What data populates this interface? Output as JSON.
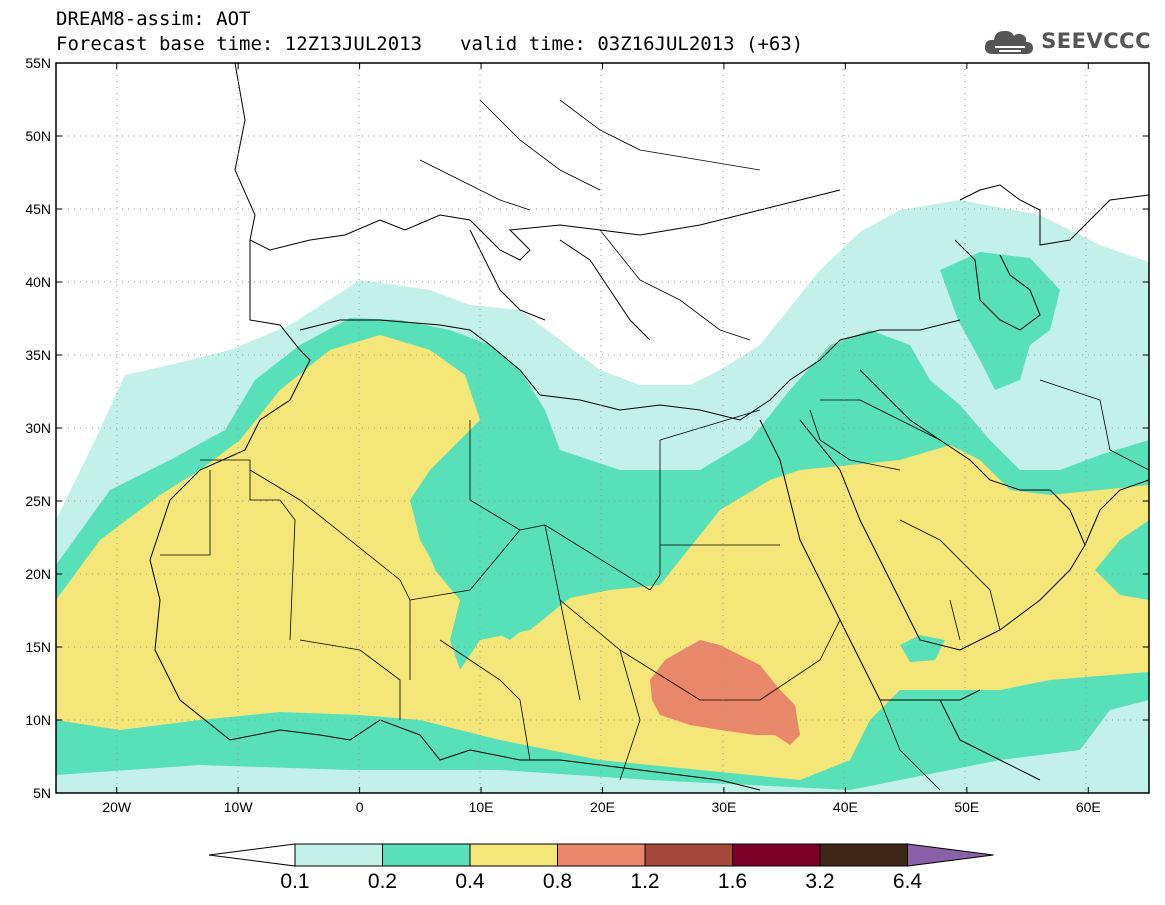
{
  "header": {
    "title": "DREAM8-assim: AOT",
    "base_time": "Forecast base time: 12Z13JUL2013",
    "valid_time": "valid time: 03Z16JUL2013 (+63)"
  },
  "logo": {
    "text": "SEEVCCC",
    "icon": "cloud-icon",
    "color": "#555555"
  },
  "map": {
    "lat_labels": [
      "5N",
      "10N",
      "15N",
      "20N",
      "25N",
      "30N",
      "35N",
      "40N",
      "45N",
      "50N",
      "55N"
    ],
    "lon_labels": [
      "20W",
      "10W",
      "0",
      "10E",
      "20E",
      "30E",
      "40E",
      "50E",
      "60E"
    ],
    "lon_range": [
      -25,
      65
    ],
    "lat_range": [
      5,
      55
    ],
    "grid": true,
    "frame_color": "#000000"
  },
  "colorbar": {
    "levels": [
      "0.1",
      "0.2",
      "0.4",
      "0.8",
      "1.2",
      "1.6",
      "3.2",
      "6.4"
    ],
    "colors": [
      "#ffffff",
      "#c4f0ea",
      "#58e0b8",
      "#f5e67a",
      "#e8876a",
      "#a5483b",
      "#7a0028",
      "#3f2418",
      "#8a61a8"
    ]
  }
}
